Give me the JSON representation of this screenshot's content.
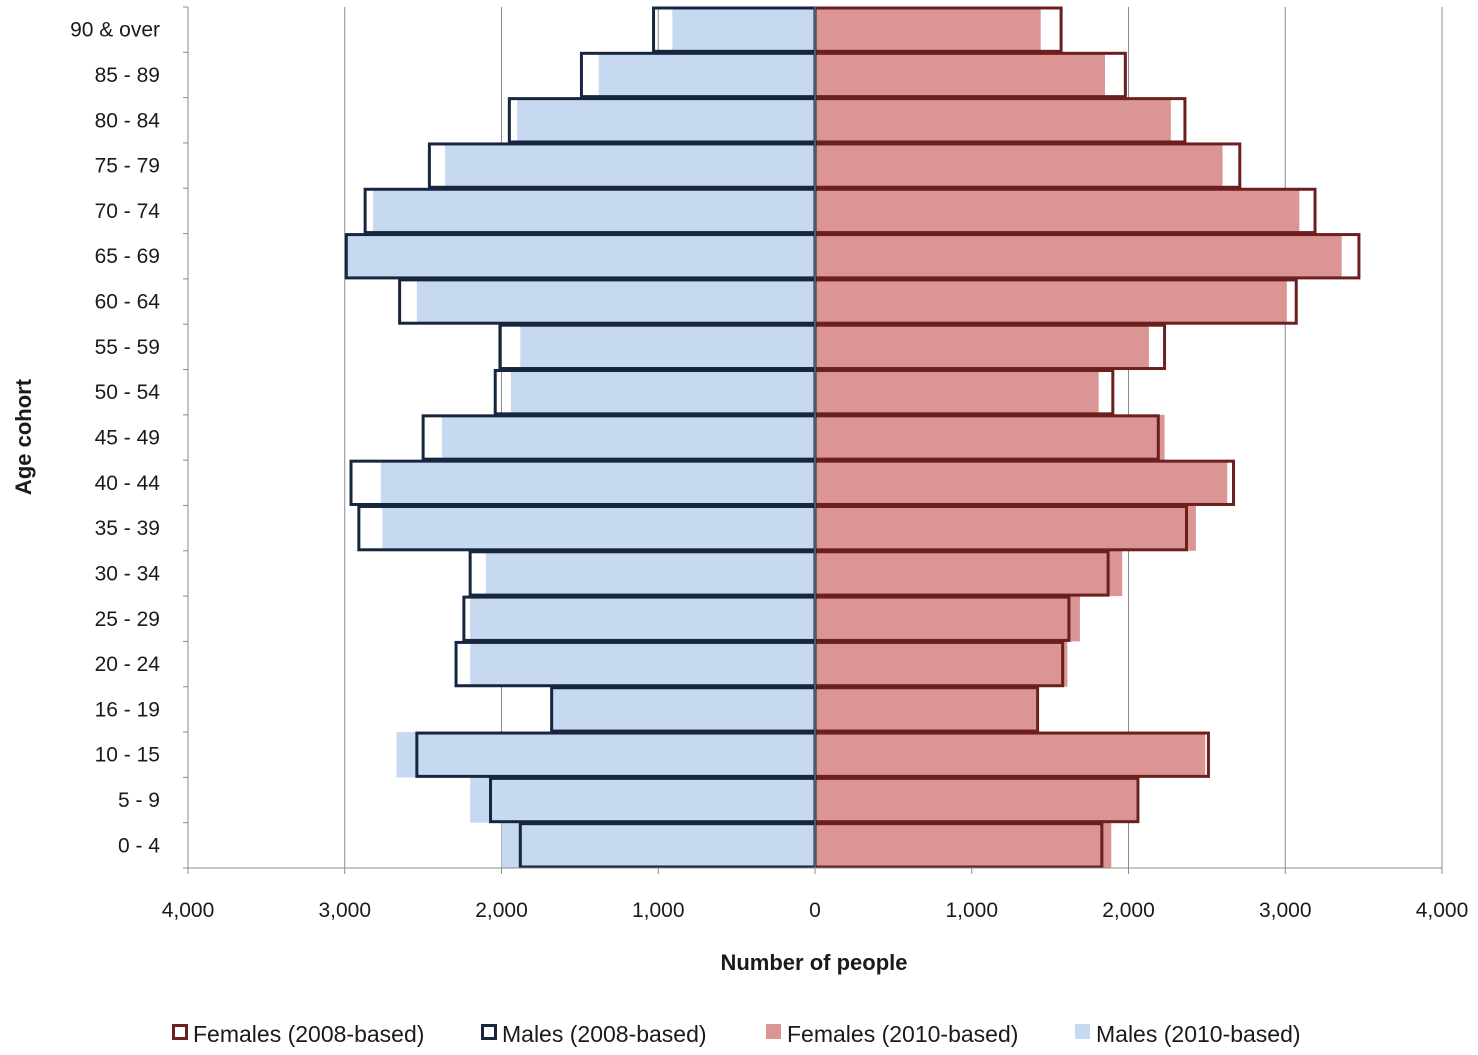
{
  "colors": {
    "females_2008": "#6b1f1f",
    "males_2008": "#17263f",
    "females_2010": "#da9594",
    "males_2010": "#c7d9f1",
    "grid": "#8c8c8c",
    "axis": "#8c8c8c"
  },
  "chart_data": {
    "type": "bar",
    "orientation": "horizontal",
    "subtype": "population-pyramid",
    "title": "",
    "xlabel": "Number of people",
    "ylabel": "Age cohort",
    "xlim": [
      -4000,
      4000
    ],
    "x_ticks": [
      -4000,
      -3000,
      -2000,
      -1000,
      0,
      1000,
      2000,
      3000,
      4000
    ],
    "x_tick_labels": [
      "4,000",
      "3,000",
      "2,000",
      "1,000",
      "0",
      "1,000",
      "2,000",
      "3,000",
      "4,000"
    ],
    "grid": true,
    "legend_position": "bottom",
    "categories": [
      "90 & over",
      "85 - 89",
      "80 - 84",
      "75 - 79",
      "70 - 74",
      "65 - 69",
      "60 - 64",
      "55 - 59",
      "50 - 54",
      "45 - 49",
      "40 - 44",
      "35 - 39",
      "30 - 34",
      "25 - 29",
      "20 - 24",
      "16 - 19",
      "10 - 15",
      "5 - 9",
      "0 - 4"
    ],
    "series": [
      {
        "name": "Females (2008-based)",
        "side": "right",
        "style": "outline",
        "values": [
          1570,
          1980,
          2360,
          2710,
          3190,
          3470,
          3070,
          2230,
          1900,
          2190,
          2670,
          2370,
          1870,
          1620,
          1580,
          1420,
          2510,
          2060,
          1830
        ]
      },
      {
        "name": "Males (2008-based)",
        "side": "left",
        "style": "outline",
        "values": [
          1030,
          1490,
          1950,
          2460,
          2870,
          2990,
          2650,
          2010,
          2040,
          2500,
          2960,
          2910,
          2200,
          2240,
          2290,
          1680,
          2540,
          2070,
          1880
        ]
      },
      {
        "name": "Females (2010-based)",
        "side": "right",
        "style": "filled",
        "values": [
          1440,
          1850,
          2270,
          2600,
          3090,
          3360,
          3010,
          2130,
          1810,
          2230,
          2630,
          2430,
          1960,
          1690,
          1610,
          1410,
          2490,
          2050,
          1890
        ]
      },
      {
        "name": "Males (2010-based)",
        "side": "left",
        "style": "filled",
        "values": [
          910,
          1380,
          1900,
          2360,
          2820,
          2980,
          2540,
          1880,
          1940,
          2380,
          2770,
          2760,
          2100,
          2200,
          2200,
          1680,
          2670,
          2200,
          2000
        ]
      }
    ]
  },
  "legend": {
    "items": [
      {
        "label": "Females (2008-based)",
        "style": "outline",
        "color_key": "females_2008"
      },
      {
        "label": "Males (2008-based)",
        "style": "outline",
        "color_key": "males_2008"
      },
      {
        "label": "Females (2010-based)",
        "style": "filled",
        "color_key": "females_2010"
      },
      {
        "label": "Males (2010-based)",
        "style": "filled",
        "color_key": "males_2010"
      }
    ]
  }
}
